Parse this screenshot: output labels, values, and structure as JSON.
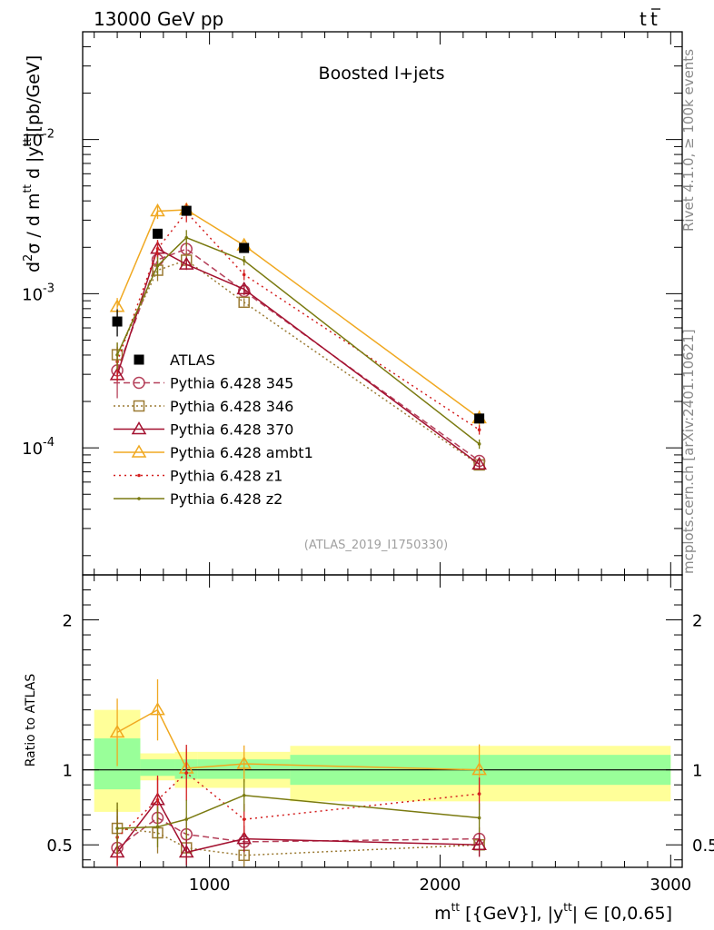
{
  "header": {
    "left": "13000 GeV pp",
    "right_main": "t",
    "right_bar": "t"
  },
  "side": {
    "top": "Rivet 4.1.0, ≥ 100k events",
    "bottom": "mcplots.cern.ch [arXiv:2401.10621]"
  },
  "chart_data": {
    "type": "scatter",
    "title": "Boosted l+jets",
    "analysis_id": "(ATLAS_2019_I1750330)",
    "ylabel": {
      "d2": "d",
      "d2_sup": "2",
      "sigma": "σ /  d m",
      "ttbar_t": "t",
      "ttbar_tb": "t",
      "d_y": " d |y",
      "tt2_t": "t",
      "tt2_tb": "t",
      "unit": "|[pb/GeV]"
    },
    "xlabel": {
      "m": "m",
      "t1": "t",
      "t2": "t",
      "mid": " [{GeV}], |y",
      "t3": "t",
      "t4": "t",
      "end": "| ∈ [0,0.65]"
    },
    "ratio_ylabel": "Ratio to ATLAS",
    "xlim": [
      450,
      3050
    ],
    "ylim": [
      1.5e-05,
      0.05
    ],
    "ratio_ylim": [
      0.35,
      2.3
    ],
    "x_ticks": [
      "1000",
      "2000",
      "3000"
    ],
    "y_ticks": [
      {
        "value": 0.01,
        "base": "10",
        "exp": "-2"
      },
      {
        "value": 0.001,
        "base": "10",
        "exp": "-3"
      },
      {
        "value": 0.0001,
        "base": "10",
        "exp": "-4"
      }
    ],
    "ratio_ticks": [
      "0.5",
      "1",
      "2"
    ],
    "data": {
      "name": "ATLAS",
      "x": [
        600,
        775,
        900,
        1150,
        2170
      ],
      "y": [
        0.00066,
        0.00245,
        0.00345,
        0.00198,
        0.000155
      ],
      "xerr": [
        [
          500,
          700
        ],
        [
          700,
          850
        ],
        [
          850,
          950
        ],
        [
          950,
          1350
        ],
        [
          1350,
          3000
        ]
      ],
      "yerr_rel_band": [
        0.4,
        0.14,
        0.1,
        0.07,
        0.06
      ],
      "band_total": [
        [
          0.72,
          1.4
        ],
        [
          0.93,
          1.11
        ],
        [
          0.88,
          1.12
        ],
        [
          0.88,
          1.12
        ],
        [
          0.79,
          1.16
        ]
      ],
      "band_stat": [
        [
          0.87,
          1.21
        ],
        [
          0.96,
          1.07
        ],
        [
          0.94,
          1.07
        ],
        [
          0.94,
          1.07
        ],
        [
          0.9,
          1.1
        ]
      ]
    },
    "series": [
      {
        "name": "Pythia 6.428 345",
        "color": "#b5405a",
        "marker": "circle",
        "dash": "7,4",
        "x": [
          600,
          775,
          900,
          1150,
          2170
        ],
        "y": [
          0.000318,
          0.00166,
          0.00195,
          0.00104,
          8.23e-05
        ],
        "ratio": [
          0.48,
          0.68,
          0.57,
          0.52,
          0.54
        ],
        "rerr": [
          0.34,
          0.09,
          0.12,
          0.06,
          0.05
        ]
      },
      {
        "name": "Pythia 6.428 346",
        "color": "#9b7a33",
        "marker": "square",
        "dash": "2,3",
        "x": [
          600,
          775,
          900,
          1150,
          2170
        ],
        "y": [
          0.000402,
          0.00142,
          0.00165,
          0.00088,
          7.75e-05
        ],
        "ratio": [
          0.61,
          0.58,
          0.48,
          0.43,
          0.5
        ],
        "rerr": [
          0.2,
          0.15,
          0.13,
          0.06,
          0.05
        ]
      },
      {
        "name": "Pythia 6.428 370",
        "color": "#a3102f",
        "marker": "triangle",
        "dash": "",
        "x": [
          600,
          775,
          900,
          1150,
          2170
        ],
        "y": [
          0.000297,
          0.00196,
          0.00155,
          0.00107,
          7.82e-05
        ],
        "ratio": [
          0.45,
          0.8,
          0.45,
          0.54,
          0.5
        ],
        "rerr": [
          0.08,
          0.12,
          0.08,
          0.07,
          0.06
        ]
      },
      {
        "name": "Pythia 6.428 ambt1",
        "color": "#f0a820",
        "marker": "triangle",
        "dash": "",
        "x": [
          600,
          775,
          900,
          1150,
          2170
        ],
        "y": [
          0.000823,
          0.00343,
          0.0035,
          0.00206,
          0.000156
        ],
        "ratio": [
          1.25,
          1.4,
          1.01,
          1.04,
          1.0
        ],
        "rerr": [
          0.14,
          0.11,
          0.08,
          0.07,
          0.12
        ]
      },
      {
        "name": "Pythia 6.428 z1",
        "color": "#d42020",
        "marker": "dot",
        "dash": "2,4",
        "x": [
          600,
          775,
          900,
          1150,
          2170
        ],
        "y": [
          0.000362,
          0.00196,
          0.00338,
          0.00133,
          0.000131
        ],
        "ratio": [
          0.55,
          0.8,
          0.98,
          0.67,
          0.84
        ],
        "rerr": [
          0.25,
          0.14,
          0.14,
          0.08,
          0.07
        ]
      },
      {
        "name": "Pythia 6.428 z2",
        "color": "#7a7a10",
        "marker": "dot",
        "dash": "",
        "x": [
          600,
          775,
          900,
          1150,
          2170
        ],
        "y": [
          0.000401,
          0.00152,
          0.00231,
          0.00164,
          0.000106
        ],
        "ratio": [
          0.61,
          0.62,
          0.67,
          0.83,
          0.68
        ],
        "rerr": [
          0.2,
          0.14,
          0.12,
          0.07,
          0.07
        ]
      }
    ]
  }
}
